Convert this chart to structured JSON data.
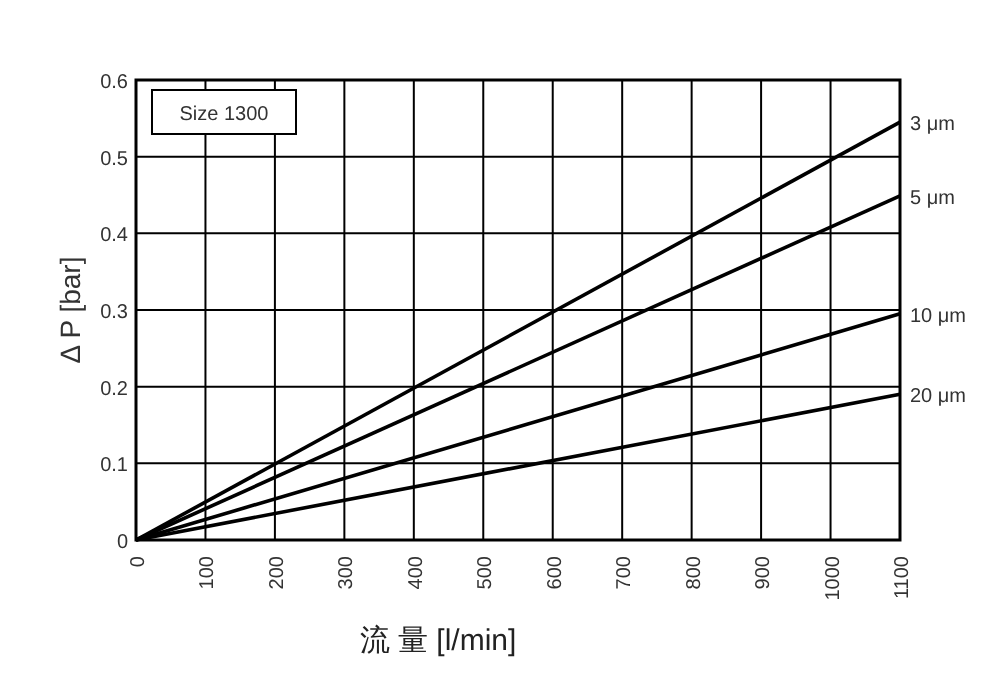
{
  "chart_data": {
    "type": "line",
    "xlabel": "流 量 [l/min]",
    "ylabel": "Δ P [bar]",
    "annotations": [
      "Size 1300"
    ],
    "x": [
      0,
      1100
    ],
    "series": [
      {
        "name": "3 μm",
        "color": "#000000",
        "values": [
          0,
          0.545
        ]
      },
      {
        "name": "5 μm",
        "color": "#000000",
        "values": [
          0,
          0.449
        ]
      },
      {
        "name": "10 μm",
        "color": "#000000",
        "values": [
          0,
          0.295
        ]
      },
      {
        "name": "20 μm",
        "color": "#000000",
        "values": [
          0,
          0.19
        ]
      }
    ],
    "xlim": [
      0,
      1100
    ],
    "xticks": [
      0,
      100,
      200,
      300,
      400,
      500,
      600,
      700,
      800,
      900,
      1000,
      1100
    ],
    "ylim": [
      0,
      0.6
    ],
    "yticks": [
      0,
      0.1,
      0.2,
      0.3,
      0.4,
      0.5,
      0.6
    ],
    "grid": true,
    "line_style": "solid"
  }
}
